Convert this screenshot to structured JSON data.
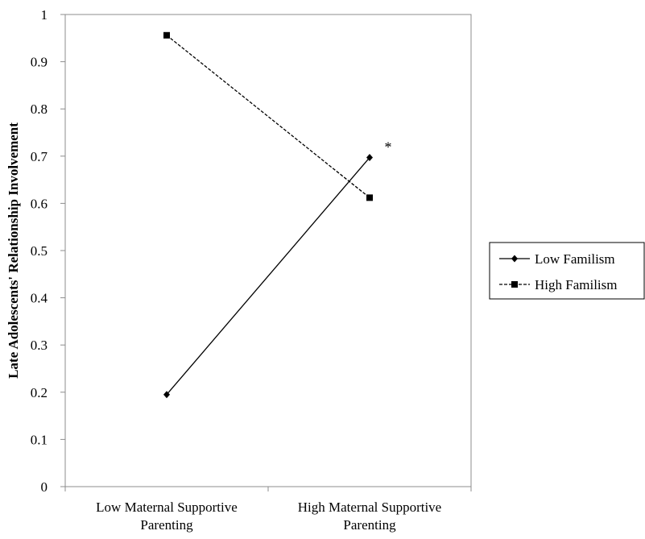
{
  "chart_data": {
    "type": "line",
    "title": "",
    "xlabel": "",
    "ylabel": "Late Adolescents' Relationship Involvement",
    "categories": [
      [
        "Low Maternal Supportive",
        "Parenting"
      ],
      [
        "High Maternal Supportive",
        "Parenting"
      ]
    ],
    "ylim": [
      0,
      1
    ],
    "yticks": [
      "0",
      "0.1",
      "0.2",
      "0.3",
      "0.4",
      "0.5",
      "0.6",
      "0.7",
      "0.8",
      "0.9",
      "1"
    ],
    "grid": false,
    "legend_position": "right",
    "series": [
      {
        "name": "Low Familism",
        "values": [
          0.195,
          0.697
        ],
        "line_style": "solid",
        "marker": "diamond"
      },
      {
        "name": "High Familism",
        "values": [
          0.956,
          0.612
        ],
        "line_style": "dashed",
        "marker": "square"
      }
    ],
    "annotations": [
      {
        "text": "*",
        "series": 0,
        "point": 1
      }
    ],
    "colors": {
      "line": "#000000",
      "axis": "#8c8c8c",
      "legend_border": "#000000"
    }
  }
}
